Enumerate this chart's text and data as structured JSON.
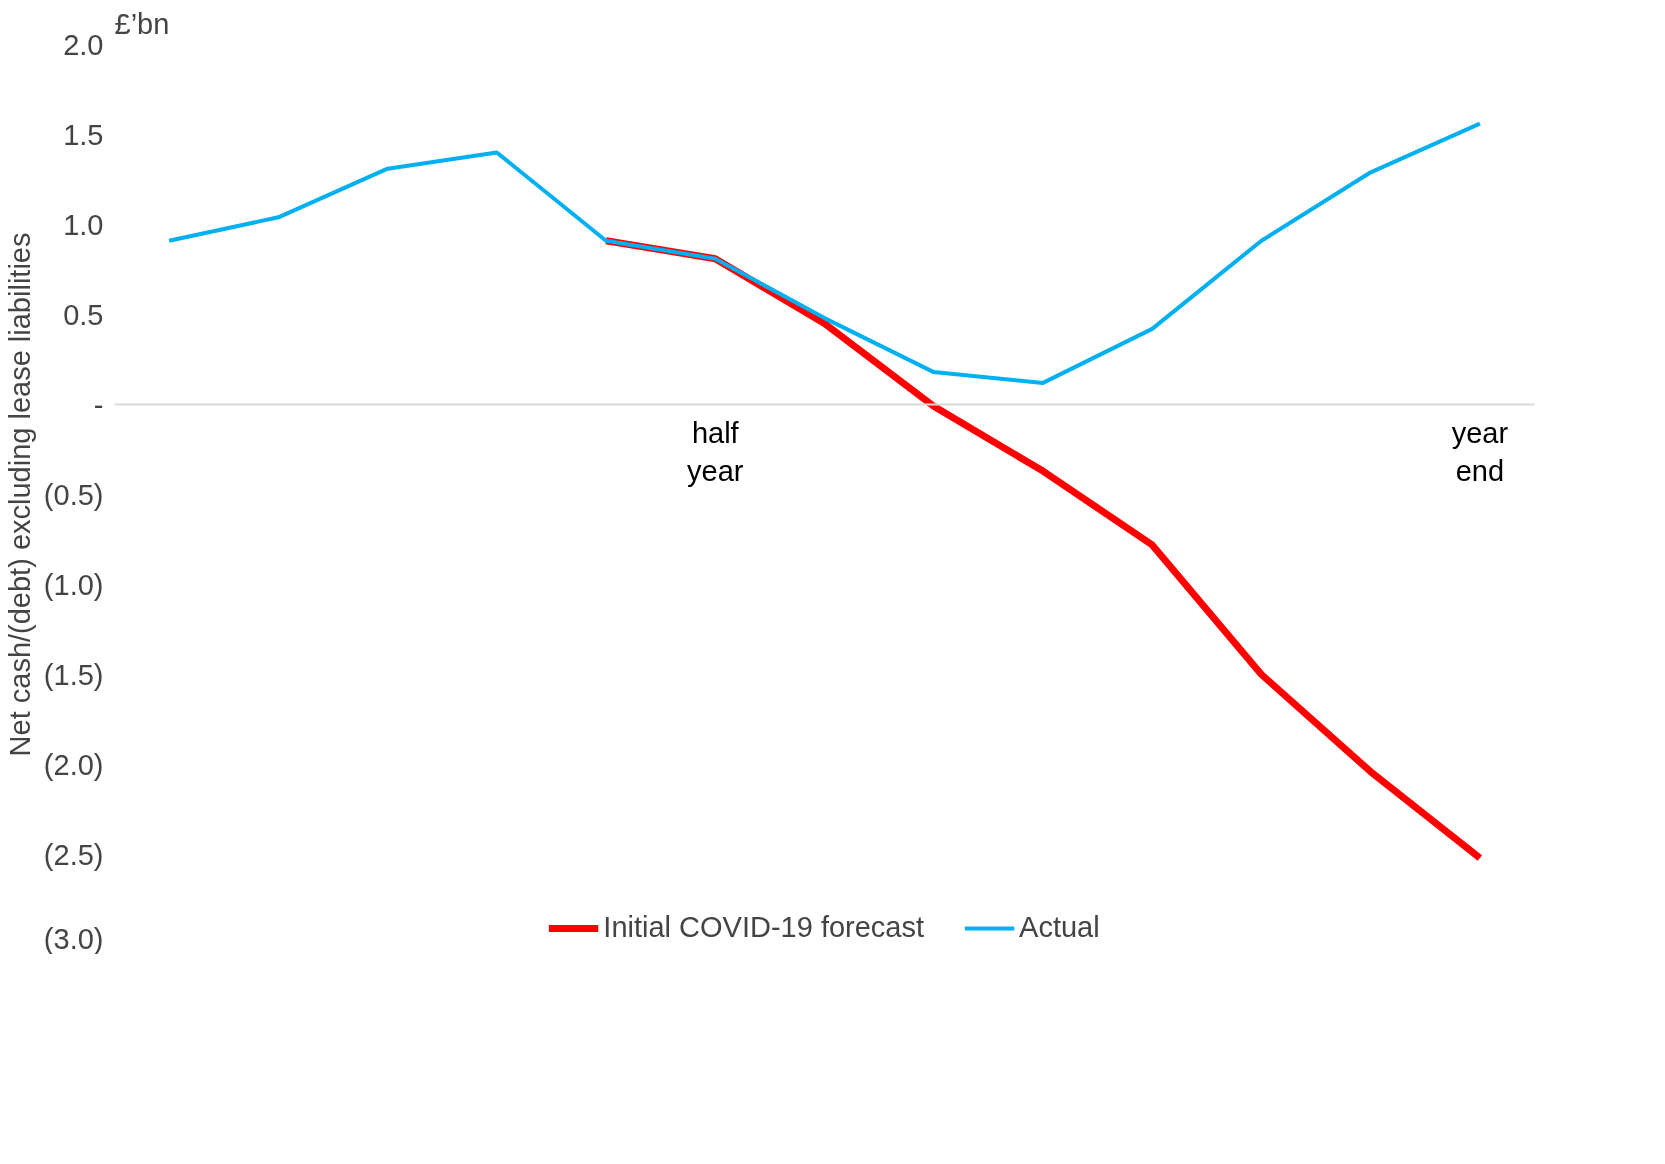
{
  "chart_data": {
    "type": "line",
    "ylabel": "Net cash/(debt) excluding lease liabilities",
    "annotations": [
      "£’bn"
    ],
    "categories": [
      null,
      null,
      null,
      null,
      null,
      "half year",
      null,
      null,
      null,
      null,
      null,
      null,
      "year end"
    ],
    "series": [
      {
        "name": "Initial COVID-19 forecast",
        "color": "#ff0000",
        "values": [
          null,
          null,
          null,
          null,
          0.91,
          0.81,
          0.45,
          -0.01,
          -0.37,
          -0.78,
          -1.5,
          -2.04,
          -2.52
        ]
      },
      {
        "name": "Actual",
        "color": "#00b0f0",
        "values": [
          0.91,
          1.04,
          1.31,
          1.4,
          0.91,
          0.81,
          0.48,
          0.18,
          0.12,
          0.42,
          0.91,
          1.29,
          1.56
        ]
      }
    ],
    "ylim": [
      -3.0,
      2.0
    ],
    "yticks": [
      {
        "value": 2.0,
        "label": "2.0"
      },
      {
        "value": 1.5,
        "label": "1.5"
      },
      {
        "value": 1.0,
        "label": "1.0"
      },
      {
        "value": 0.5,
        "label": "0.5"
      },
      {
        "value": 0,
        "label": "-"
      },
      {
        "value": -0.5,
        "label": "(0.5)"
      },
      {
        "value": -1.0,
        "label": "(1.0)"
      },
      {
        "value": -1.5,
        "label": "(1.5)"
      },
      {
        "value": -2.0,
        "label": "(2.0)"
      },
      {
        "value": -2.5,
        "label": "(2.5)"
      },
      {
        "value": -3.0,
        "label": "(3.0)"
      }
    ],
    "grid": false,
    "legend": "bottom",
    "marker": "none",
    "line_style": "solid"
  }
}
